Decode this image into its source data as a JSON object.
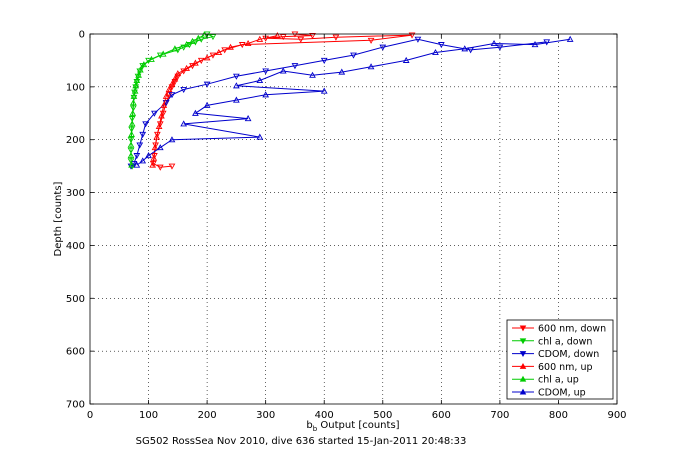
{
  "chart_data": {
    "type": "scatter",
    "title": "",
    "xlabel": "b",
    "xlabel_sub": "b",
    "xlabel_rest": " Output [counts]",
    "ylabel": "Depth [counts]",
    "footer": "SG502 RossSea Nov 2010, dive 636 started 15-Jan-2011 20:48:33",
    "xlim": [
      0,
      900
    ],
    "ylim": [
      0,
      700
    ],
    "y_reversed": true,
    "grid": true,
    "legend_position": "bottom-right",
    "xticks": [
      "0",
      "100",
      "200",
      "300",
      "400",
      "500",
      "600",
      "700",
      "800",
      "900"
    ],
    "yticks": [
      "0",
      "100",
      "200",
      "300",
      "400",
      "500",
      "600",
      "700"
    ],
    "series": [
      {
        "name": "600 nm, down",
        "color": "#ff0000",
        "marker": "triangle-down",
        "points": [
          [
            350,
            0
          ],
          [
            380,
            3
          ],
          [
            330,
            5
          ],
          [
            300,
            8
          ],
          [
            360,
            10
          ],
          [
            420,
            6
          ],
          [
            550,
            2
          ],
          [
            480,
            12
          ],
          [
            260,
            20
          ],
          [
            230,
            30
          ],
          [
            210,
            40
          ],
          [
            190,
            50
          ],
          [
            175,
            60
          ],
          [
            160,
            70
          ],
          [
            150,
            80
          ],
          [
            145,
            90
          ],
          [
            140,
            100
          ],
          [
            135,
            115
          ],
          [
            130,
            130
          ],
          [
            125,
            150
          ],
          [
            120,
            170
          ],
          [
            115,
            190
          ],
          [
            112,
            210
          ],
          [
            110,
            230
          ],
          [
            108,
            245
          ],
          [
            120,
            252
          ],
          [
            140,
            250
          ]
        ]
      },
      {
        "name": "chl a, down",
        "color": "#00cc00",
        "marker": "triangle-down",
        "points": [
          [
            200,
            0
          ],
          [
            210,
            5
          ],
          [
            190,
            10
          ],
          [
            180,
            15
          ],
          [
            170,
            20
          ],
          [
            160,
            25
          ],
          [
            150,
            30
          ],
          [
            120,
            40
          ],
          [
            100,
            50
          ],
          [
            90,
            60
          ],
          [
            85,
            70
          ],
          [
            82,
            80
          ],
          [
            80,
            90
          ],
          [
            78,
            100
          ],
          [
            76,
            110
          ],
          [
            75,
            120
          ],
          [
            74,
            140
          ],
          [
            72,
            160
          ],
          [
            71,
            180
          ],
          [
            70,
            200
          ],
          [
            70,
            220
          ],
          [
            70,
            240
          ],
          [
            72,
            250
          ]
        ]
      },
      {
        "name": "CDOM, down",
        "color": "#0000cc",
        "marker": "triangle-down",
        "points": [
          [
            780,
            15
          ],
          [
            700,
            25
          ],
          [
            650,
            30
          ],
          [
            600,
            20
          ],
          [
            560,
            10
          ],
          [
            500,
            25
          ],
          [
            450,
            40
          ],
          [
            400,
            50
          ],
          [
            350,
            60
          ],
          [
            300,
            70
          ],
          [
            250,
            80
          ],
          [
            200,
            95
          ],
          [
            160,
            105
          ],
          [
            140,
            115
          ],
          [
            130,
            130
          ],
          [
            110,
            150
          ],
          [
            95,
            170
          ],
          [
            90,
            190
          ],
          [
            85,
            210
          ],
          [
            80,
            230
          ],
          [
            75,
            245
          ],
          [
            70,
            250
          ]
        ]
      },
      {
        "name": "600 nm, up",
        "color": "#ff0000",
        "marker": "triangle-up",
        "points": [
          [
            320,
            3
          ],
          [
            290,
            10
          ],
          [
            270,
            18
          ],
          [
            240,
            25
          ],
          [
            220,
            35
          ],
          [
            200,
            45
          ],
          [
            180,
            55
          ],
          [
            165,
            65
          ],
          [
            150,
            75
          ],
          [
            145,
            85
          ],
          [
            140,
            95
          ],
          [
            135,
            105
          ],
          [
            130,
            118
          ],
          [
            126,
            135
          ],
          [
            122,
            155
          ],
          [
            118,
            175
          ],
          [
            114,
            195
          ],
          [
            111,
            215
          ],
          [
            109,
            235
          ],
          [
            107,
            248
          ]
        ]
      },
      {
        "name": "chl a, up",
        "color": "#00cc00",
        "marker": "triangle-up",
        "points": [
          [
            195,
            2
          ],
          [
            185,
            8
          ],
          [
            175,
            14
          ],
          [
            165,
            20
          ],
          [
            145,
            28
          ],
          [
            125,
            38
          ],
          [
            105,
            48
          ],
          [
            92,
            58
          ],
          [
            86,
            68
          ],
          [
            83,
            78
          ],
          [
            80,
            88
          ],
          [
            78,
            98
          ],
          [
            77,
            108
          ],
          [
            75,
            118
          ],
          [
            74,
            130
          ],
          [
            73,
            150
          ],
          [
            72,
            170
          ],
          [
            71,
            190
          ],
          [
            70,
            210
          ],
          [
            70,
            230
          ],
          [
            71,
            248
          ]
        ]
      },
      {
        "name": "CDOM, up",
        "color": "#0000cc",
        "marker": "triangle-up",
        "points": [
          [
            820,
            10
          ],
          [
            760,
            20
          ],
          [
            690,
            18
          ],
          [
            640,
            28
          ],
          [
            590,
            35
          ],
          [
            540,
            50
          ],
          [
            480,
            62
          ],
          [
            430,
            72
          ],
          [
            380,
            78
          ],
          [
            330,
            70
          ],
          [
            290,
            88
          ],
          [
            250,
            98
          ],
          [
            400,
            108
          ],
          [
            300,
            115
          ],
          [
            250,
            125
          ],
          [
            200,
            135
          ],
          [
            180,
            150
          ],
          [
            270,
            160
          ],
          [
            160,
            170
          ],
          [
            290,
            195
          ],
          [
            140,
            200
          ],
          [
            120,
            215
          ],
          [
            100,
            230
          ],
          [
            90,
            240
          ],
          [
            80,
            248
          ]
        ]
      }
    ]
  }
}
